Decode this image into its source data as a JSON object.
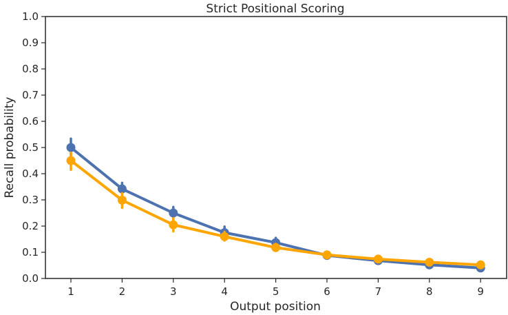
{
  "chart_data": {
    "type": "line",
    "title": "Strict Positional Scoring",
    "xlabel": "Output position",
    "ylabel": "Recall probability",
    "categories": [
      "1",
      "2",
      "3",
      "4",
      "5",
      "6",
      "7",
      "8",
      "9"
    ],
    "ylim": [
      0,
      1.0
    ],
    "yticks": [
      "0.0",
      "0.1",
      "0.2",
      "0.3",
      "0.4",
      "0.5",
      "0.6",
      "0.7",
      "0.8",
      "0.9",
      "1.0"
    ],
    "grid": false,
    "legend": "none",
    "series": [
      {
        "color": "#4c72b0",
        "values": [
          0.5,
          0.342,
          0.25,
          0.175,
          0.137,
          0.088,
          0.068,
          0.052,
          0.04
        ],
        "err_low": [
          0.47,
          0.323,
          0.228,
          0.158,
          0.122,
          0.082,
          0.062,
          0.047,
          0.036
        ],
        "err_high": [
          0.534,
          0.365,
          0.273,
          0.198,
          0.155,
          0.095,
          0.075,
          0.058,
          0.045
        ]
      },
      {
        "color": "#ffa500",
        "values": [
          0.45,
          0.299,
          0.205,
          0.16,
          0.118,
          0.09,
          0.074,
          0.062,
          0.052
        ],
        "err_low": [
          0.415,
          0.27,
          0.18,
          0.145,
          0.105,
          0.083,
          0.068,
          0.056,
          0.047
        ],
        "err_high": [
          0.48,
          0.325,
          0.23,
          0.178,
          0.132,
          0.098,
          0.081,
          0.068,
          0.057
        ]
      }
    ]
  }
}
